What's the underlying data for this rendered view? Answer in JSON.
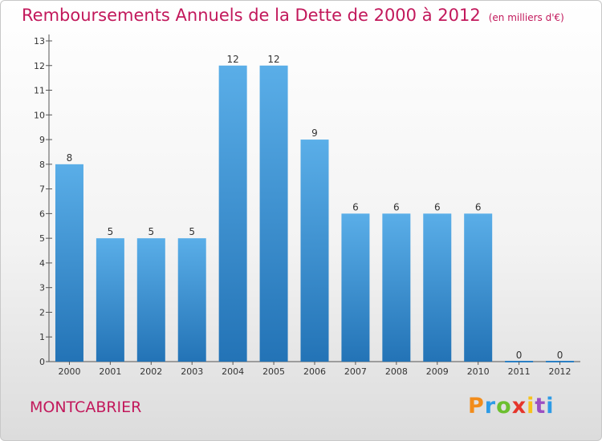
{
  "title": "Remboursements Annuels de la Dette de 2000 à 2012",
  "unit": "(en milliers d'€)",
  "commune": "MONTCABRIER",
  "brand": "Proxiti",
  "colors": {
    "accent": "#c2185b",
    "bar_top": "#5aaee8",
    "bar_bottom": "#2373b6"
  },
  "chart_data": {
    "type": "bar",
    "categories": [
      "2000",
      "2001",
      "2002",
      "2003",
      "2004",
      "2005",
      "2006",
      "2007",
      "2008",
      "2009",
      "2010",
      "2011",
      "2012"
    ],
    "values": [
      8,
      5,
      5,
      5,
      12,
      12,
      9,
      6,
      6,
      6,
      6,
      0,
      0
    ],
    "title": "Remboursements Annuels de la Dette de 2000 à 2012",
    "xlabel": "",
    "ylabel": "",
    "ylim": [
      0,
      13
    ],
    "yticks": [
      0,
      1,
      2,
      3,
      4,
      5,
      6,
      7,
      8,
      9,
      10,
      11,
      12,
      13
    ],
    "grid": false,
    "data_labels": true
  }
}
